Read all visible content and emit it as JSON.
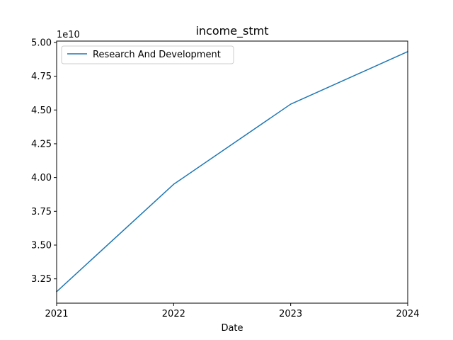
{
  "chart_data": {
    "type": "line",
    "title": "income_stmt",
    "xlabel": "Date",
    "ylabel": "",
    "offset_label": "1e10",
    "x": [
      "2021",
      "2022",
      "2023",
      "2024"
    ],
    "xlim": [
      "2021",
      "2024"
    ],
    "x_ticks": [
      "2021",
      "2022",
      "2023",
      "2024"
    ],
    "ylim": [
      3.07,
      5.01
    ],
    "y_ticks": [
      "3.25",
      "3.50",
      "3.75",
      "4.00",
      "4.25",
      "4.50",
      "4.75",
      "5.00"
    ],
    "series": [
      {
        "name": "Research And Development",
        "color": "#1f77b4",
        "values": [
          3.155,
          3.95,
          4.543,
          4.932
        ]
      }
    ],
    "legend_position": "upper-left",
    "grid": false
  }
}
